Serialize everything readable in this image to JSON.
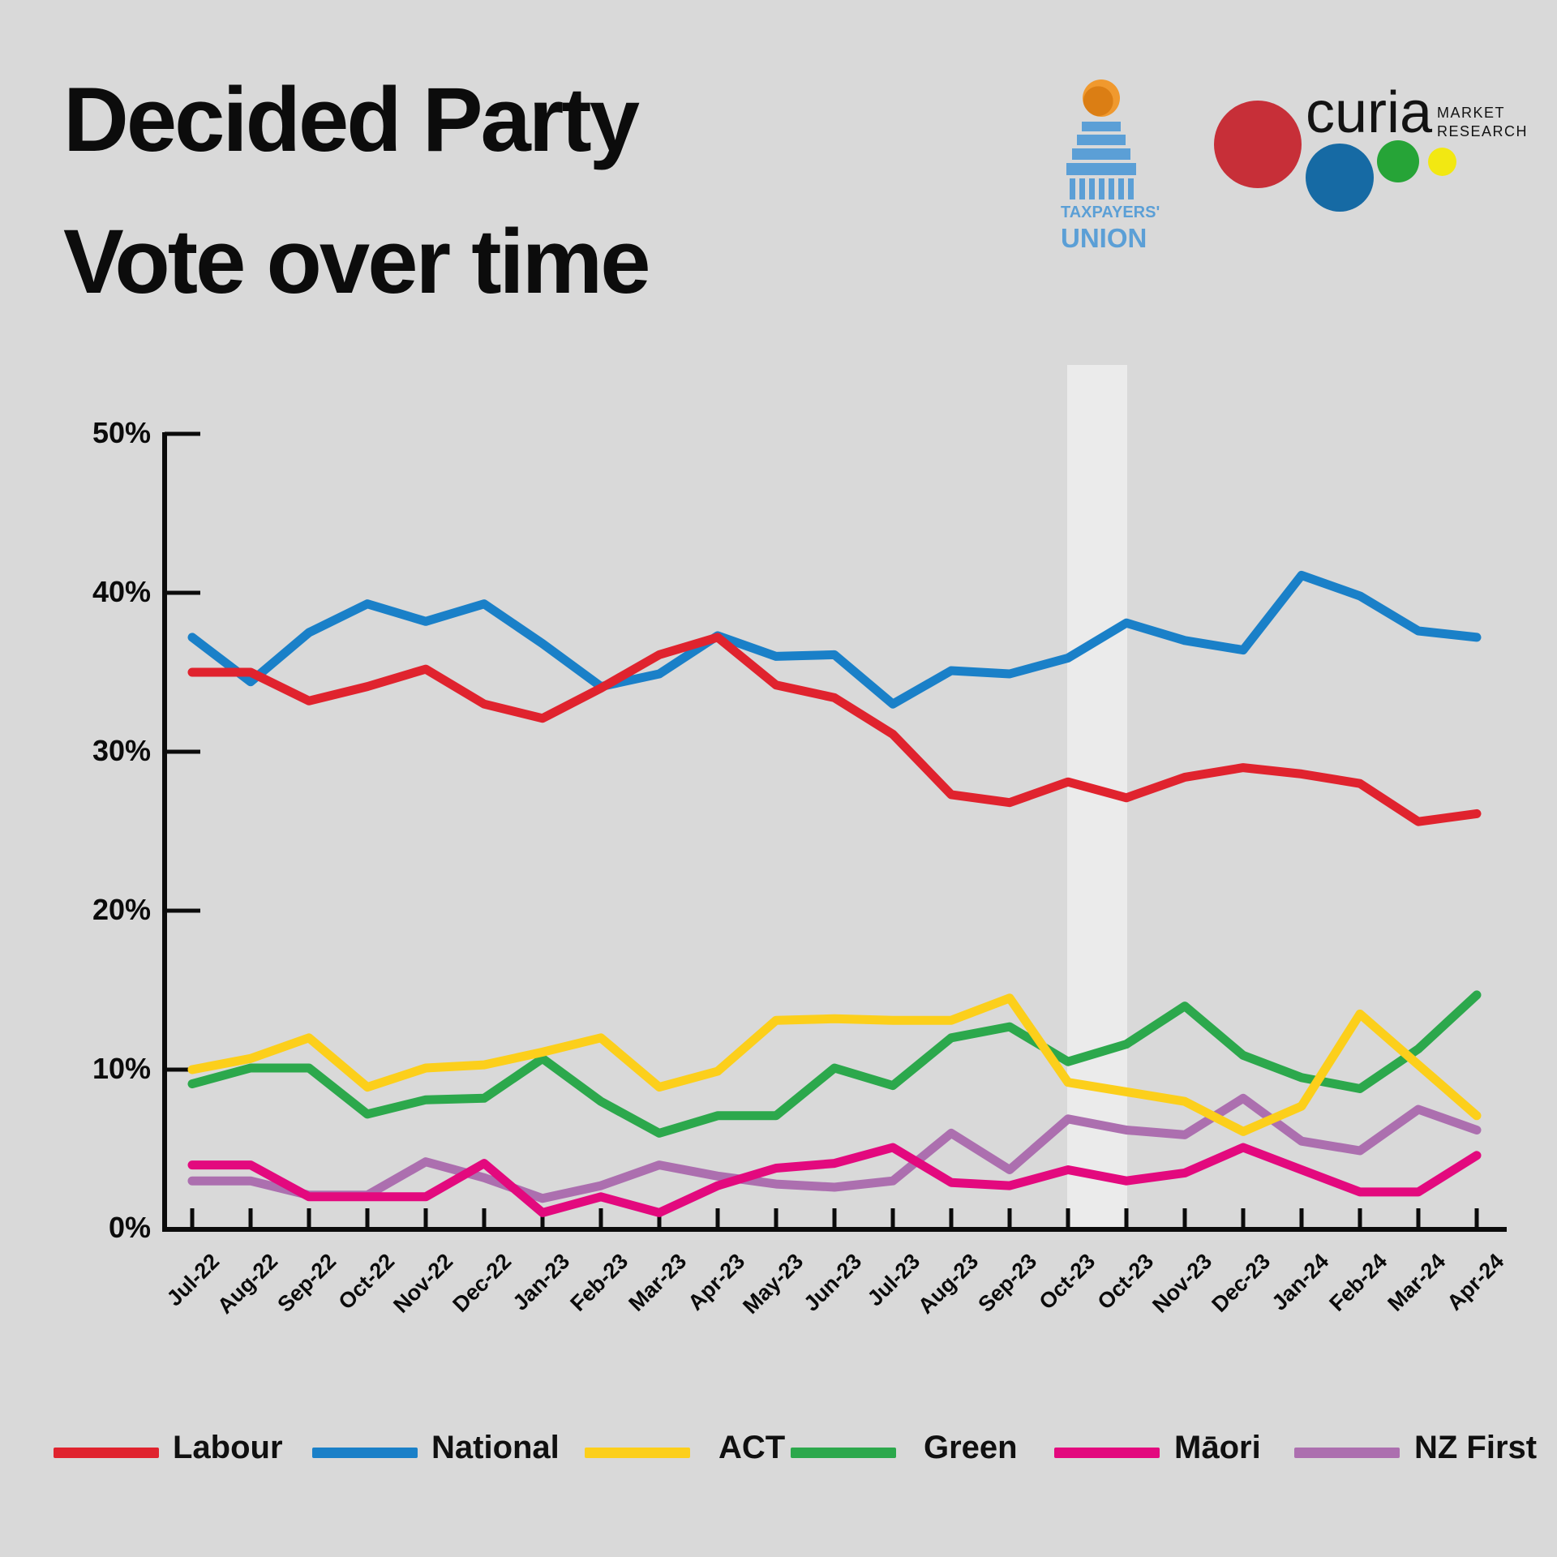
{
  "title": {
    "line1": "Decided Party",
    "line2": "Vote over time"
  },
  "logos": {
    "taxpayers_union": {
      "line1": "TAXPAYERS'",
      "line2": "UNION"
    },
    "curia": {
      "name": "curia",
      "tagline_line1": "MARKET",
      "tagline_line2": "RESEARCH"
    }
  },
  "chart_data": {
    "type": "line",
    "title": "Decided Party Vote over time",
    "xlabel": "",
    "ylabel": "",
    "ylim": [
      0,
      50
    ],
    "y_tick_step": 10,
    "y_tick_labels": [
      "0%",
      "10%",
      "20%",
      "30%",
      "40%",
      "50%"
    ],
    "grid": false,
    "legend_position": "bottom",
    "highlight_band": {
      "from_label_index": 15,
      "to_label_index": 16,
      "note": "election period between the two Oct-23 polls"
    },
    "x_labels": [
      "Jul-22",
      "Aug-22",
      "Sep-22",
      "Oct-22",
      "Nov-22",
      "Dec-22",
      "Jan-23",
      "Feb-23",
      "Mar-23",
      "Apr-23",
      "May-23",
      "Jun-23",
      "Jul-23",
      "Aug-23",
      "Sep-23",
      "Oct-23",
      "Oct-23",
      "Nov-23",
      "Dec-23",
      "Jan-24",
      "Feb-24",
      "Mar-24",
      "Apr-24"
    ],
    "series": [
      {
        "name": "NZ First",
        "color": "#AC6FAF",
        "values": [
          3.0,
          3.0,
          2.1,
          2.1,
          4.2,
          3.2,
          1.9,
          2.7,
          4.0,
          3.3,
          2.8,
          2.6,
          3.0,
          6.0,
          3.7,
          6.9,
          6.2,
          5.9,
          8.2,
          5.5,
          4.9,
          7.5,
          6.2
        ]
      },
      {
        "name": "Green",
        "color": "#2CA84C",
        "values": [
          9.1,
          10.1,
          10.1,
          7.2,
          8.1,
          8.2,
          10.7,
          8.0,
          6.0,
          7.1,
          7.1,
          10.1,
          9.0,
          12.0,
          12.7,
          10.5,
          11.6,
          14.0,
          10.9,
          9.5,
          8.8,
          11.3,
          14.7
        ]
      },
      {
        "name": "ACT",
        "color": "#FCCF1B",
        "values": [
          10.0,
          10.7,
          12.0,
          8.9,
          10.1,
          10.3,
          11.1,
          12.0,
          8.9,
          9.9,
          13.1,
          13.2,
          13.1,
          13.1,
          14.5,
          9.2,
          8.6,
          8.0,
          6.1,
          7.7,
          13.5,
          10.3,
          7.1
        ]
      },
      {
        "name": "Māori",
        "color": "#E3097E",
        "values": [
          4.0,
          4.0,
          2.0,
          2.0,
          2.0,
          4.1,
          1.0,
          2.0,
          1.0,
          2.7,
          3.8,
          4.1,
          5.1,
          2.9,
          2.7,
          3.7,
          3.0,
          3.5,
          5.1,
          3.7,
          2.3,
          2.3,
          4.6
        ]
      },
      {
        "name": "National",
        "color": "#1A80C8",
        "values": [
          37.2,
          34.4,
          37.5,
          39.3,
          38.2,
          39.3,
          36.8,
          34.1,
          34.9,
          37.3,
          36.0,
          36.1,
          33.0,
          35.1,
          34.9,
          35.9,
          38.1,
          37.0,
          36.4,
          41.1,
          39.8,
          37.6,
          37.2
        ]
      },
      {
        "name": "Labour",
        "color": "#E0232E",
        "values": [
          35.0,
          35.0,
          33.2,
          34.1,
          35.2,
          33.0,
          32.1,
          34.0,
          36.1,
          37.2,
          34.2,
          33.4,
          31.1,
          27.3,
          26.8,
          28.1,
          27.1,
          28.4,
          29.0,
          28.6,
          28.0,
          25.6,
          26.1
        ]
      }
    ],
    "legend_order": [
      "Labour",
      "National",
      "ACT",
      "Green",
      "Māori",
      "NZ First"
    ]
  }
}
